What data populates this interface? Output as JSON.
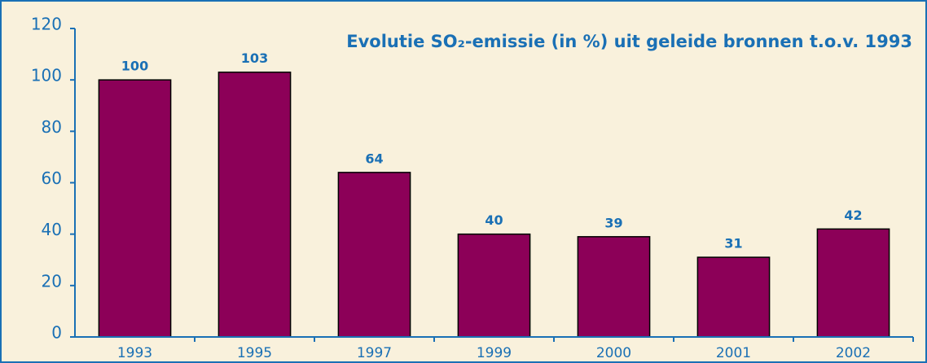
{
  "chart_data": {
    "type": "bar",
    "title": "Evolutie SO₂-emissie (in %) uit geleide bronnen t.o.v. 1993",
    "categories": [
      "1993",
      "1995",
      "1997",
      "1999",
      "2000",
      "2001",
      "2002"
    ],
    "values": [
      100,
      103,
      64,
      40,
      39,
      31,
      42
    ],
    "color": "#8c0058",
    "ylim": [
      0,
      120
    ],
    "yticks": [
      0,
      20,
      40,
      60,
      80,
      100,
      120
    ],
    "grid": false
  }
}
